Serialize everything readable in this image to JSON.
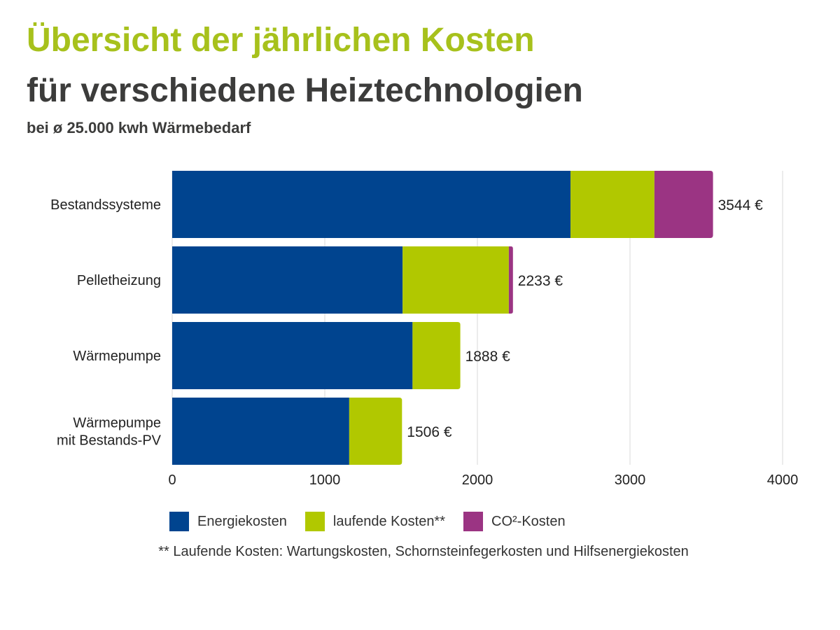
{
  "header": {
    "title_line1": "Übersicht der jährlichen Kosten",
    "title_line2": "für verschiedene Heiztechnologien",
    "subtitle": "bei ø 25.000 kwh Wärmebedarf"
  },
  "chart_data": {
    "type": "bar",
    "orientation": "horizontal",
    "stacked": true,
    "categories": [
      "Bestandssysteme",
      "Pelletheizung",
      "Wärmepumpe",
      "Wärmepumpe\nmit Bestands-PV"
    ],
    "series": [
      {
        "name": "Energiekosten",
        "color": "#00448f",
        "values": [
          2610,
          1510,
          1575,
          1160
        ]
      },
      {
        "name": "laufende Kosten**",
        "color": "#b1c800",
        "values": [
          550,
          696,
          313,
          346
        ]
      },
      {
        "name": "CO²-Kosten",
        "color": "#9b3483",
        "values": [
          384,
          27,
          0,
          0
        ]
      }
    ],
    "totals": [
      3544,
      2233,
      1888,
      1506
    ],
    "total_labels": [
      "3544 €",
      "2233 €",
      "1888 €",
      "1506 €"
    ],
    "xlim": [
      0,
      4000
    ],
    "xticks": [
      0,
      1000,
      2000,
      3000,
      4000
    ],
    "grid": true,
    "legend_position": "bottom",
    "footnote": "** Laufende Kosten: Wartungskosten, Schornsteinfegerkosten und Hilfsenergiekosten"
  }
}
